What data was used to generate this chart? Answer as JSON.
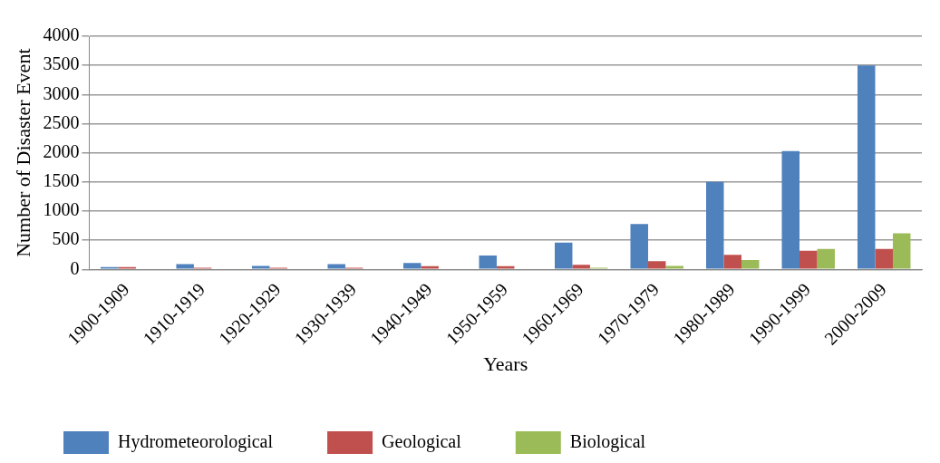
{
  "chart_data": {
    "type": "bar",
    "xlabel": "Years",
    "ylabel": "Number of Disaster Event",
    "categories": [
      "1900-1909",
      "1910-1919",
      "1920-1929",
      "1930-1939",
      "1940-1949",
      "1950-1959",
      "1960-1969",
      "1970-1979",
      "1980-1989",
      "1990-1999",
      "2000-2009"
    ],
    "series": [
      {
        "name": "Hydrometeorological",
        "color": "#4f81bd",
        "values": [
          40,
          90,
          60,
          90,
          110,
          240,
          460,
          780,
          1500,
          2030,
          3500
        ]
      },
      {
        "name": "Geological",
        "color": "#c0504d",
        "values": [
          40,
          30,
          30,
          30,
          55,
          55,
          80,
          140,
          250,
          320,
          350
        ]
      },
      {
        "name": "Biological",
        "color": "#9bbb59",
        "values": [
          0,
          0,
          0,
          0,
          0,
          0,
          30,
          60,
          160,
          350,
          620
        ]
      }
    ],
    "ylim": [
      0,
      4000
    ],
    "yticks": [
      0,
      500,
      1000,
      1500,
      2000,
      2500,
      3000,
      3500,
      4000
    ],
    "grid": "y",
    "legend": "bottom"
  }
}
